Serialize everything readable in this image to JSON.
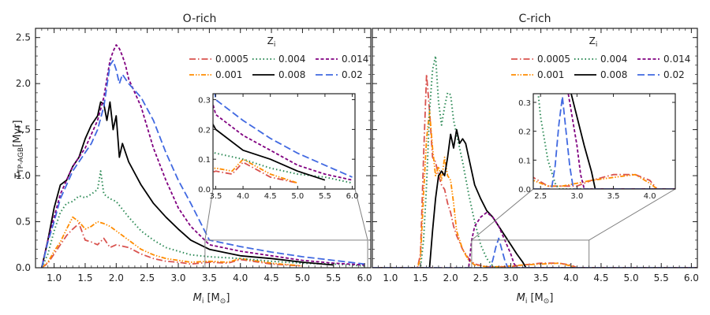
{
  "colors": {
    "0.0005": "#d9534f",
    "0.001": "#ff8c00",
    "0.004": "#2e8b57",
    "0.008": "#000000",
    "0.014": "#800080",
    "0.02": "#4169e1",
    "inset_box": "#808080"
  },
  "chart_data": [
    {
      "type": "line",
      "title": "O-rich",
      "xlabel": "M_i [M_sun]",
      "ylabel": "tau_TP-AGB [Myr]",
      "xlim": [
        0.7,
        6.1
      ],
      "ylim": [
        0,
        2.6
      ],
      "xticks": [
        1.0,
        1.5,
        2.0,
        2.5,
        3.0,
        3.5,
        4.0,
        4.5,
        5.0,
        5.5,
        6.0
      ],
      "yticks": [
        0.0,
        0.5,
        1.0,
        1.5,
        2.0,
        2.5
      ],
      "xtick_labels": [
        "1.0",
        "1.5",
        "2.0",
        "2.5",
        "3.0",
        "3.5",
        "4.0",
        "4.5",
        "5.0",
        "5.5",
        "6.0"
      ],
      "ytick_labels": [
        "0.0",
        "0.5",
        "1.0",
        "1.5",
        "2.0",
        "2.5"
      ],
      "legend": {
        "title": "Z",
        "title_subscript": "i",
        "entries": [
          "0.0005",
          "0.004",
          "0.014",
          "0.001",
          "0.008",
          "0.02"
        ]
      },
      "series": [
        {
          "name": "0.0005",
          "style": "dashdot",
          "x": [
            0.8,
            0.9,
            1.0,
            1.1,
            1.2,
            1.3,
            1.4,
            1.5,
            1.6,
            1.7,
            1.8,
            1.9,
            2.0,
            2.2,
            2.4,
            2.6,
            2.8,
            3.0,
            3.2,
            3.5,
            3.8,
            4.0,
            4.2,
            4.5,
            5.0
          ],
          "y": [
            0.0,
            0.05,
            0.15,
            0.25,
            0.35,
            0.42,
            0.48,
            0.3,
            0.28,
            0.25,
            0.32,
            0.22,
            0.25,
            0.22,
            0.15,
            0.1,
            0.07,
            0.06,
            0.04,
            0.06,
            0.05,
            0.09,
            0.07,
            0.04,
            0.02
          ]
        },
        {
          "name": "0.001",
          "style": "dashdotdot",
          "x": [
            0.8,
            0.9,
            1.0,
            1.1,
            1.2,
            1.3,
            1.4,
            1.5,
            1.6,
            1.7,
            1.8,
            1.9,
            2.0,
            2.2,
            2.4,
            2.6,
            2.8,
            3.0,
            3.2,
            3.5,
            3.8,
            4.0,
            4.2,
            4.5,
            5.0
          ],
          "y": [
            0.0,
            0.06,
            0.18,
            0.28,
            0.42,
            0.55,
            0.5,
            0.42,
            0.45,
            0.5,
            0.48,
            0.45,
            0.4,
            0.3,
            0.2,
            0.14,
            0.1,
            0.08,
            0.06,
            0.07,
            0.06,
            0.1,
            0.08,
            0.05,
            0.02
          ]
        },
        {
          "name": "0.004",
          "style": "dotted",
          "x": [
            0.8,
            0.9,
            1.0,
            1.1,
            1.2,
            1.3,
            1.4,
            1.5,
            1.6,
            1.7,
            1.75,
            1.8,
            1.9,
            2.0,
            2.2,
            2.4,
            2.6,
            2.8,
            3.0,
            3.2,
            3.5,
            4.0,
            4.5,
            5.0,
            5.5,
            6.0
          ],
          "y": [
            0.0,
            0.15,
            0.4,
            0.6,
            0.7,
            0.72,
            0.78,
            0.76,
            0.8,
            0.85,
            1.05,
            0.8,
            0.75,
            0.72,
            0.55,
            0.4,
            0.3,
            0.22,
            0.18,
            0.14,
            0.12,
            0.1,
            0.07,
            0.05,
            0.04,
            0.02
          ]
        },
        {
          "name": "0.008",
          "style": "solid",
          "x": [
            0.8,
            0.9,
            1.0,
            1.1,
            1.2,
            1.3,
            1.4,
            1.5,
            1.6,
            1.7,
            1.75,
            1.8,
            1.85,
            1.9,
            1.95,
            2.0,
            2.05,
            2.1,
            2.2,
            2.4,
            2.6,
            2.8,
            3.0,
            3.2,
            3.5,
            4.0,
            4.5,
            5.0,
            5.5
          ],
          "y": [
            0.0,
            0.3,
            0.65,
            0.9,
            0.95,
            1.1,
            1.2,
            1.4,
            1.55,
            1.65,
            1.8,
            1.78,
            1.6,
            1.8,
            1.5,
            1.65,
            1.2,
            1.35,
            1.15,
            0.9,
            0.7,
            0.55,
            0.42,
            0.3,
            0.2,
            0.13,
            0.1,
            0.06,
            0.03
          ]
        },
        {
          "name": "0.014",
          "style": "dashed",
          "x": [
            0.8,
            0.9,
            1.0,
            1.1,
            1.2,
            1.3,
            1.4,
            1.5,
            1.6,
            1.7,
            1.8,
            1.9,
            1.95,
            2.0,
            2.05,
            2.1,
            2.15,
            2.2,
            2.4,
            2.6,
            2.8,
            3.0,
            3.2,
            3.5,
            4.0,
            4.5,
            5.0,
            5.5,
            6.0
          ],
          "y": [
            0.0,
            0.3,
            0.55,
            0.8,
            0.95,
            1.1,
            1.2,
            1.3,
            1.45,
            1.6,
            1.85,
            2.25,
            2.35,
            2.42,
            2.38,
            2.3,
            2.2,
            2.05,
            1.75,
            1.3,
            0.95,
            0.65,
            0.45,
            0.25,
            0.18,
            0.13,
            0.08,
            0.05,
            0.03
          ]
        },
        {
          "name": "0.02",
          "style": "longdash",
          "x": [
            0.8,
            0.9,
            1.0,
            1.1,
            1.2,
            1.3,
            1.4,
            1.5,
            1.6,
            1.7,
            1.8,
            1.9,
            1.95,
            2.0,
            2.05,
            2.1,
            2.2,
            2.4,
            2.6,
            2.8,
            3.0,
            3.2,
            3.5,
            4.0,
            4.5,
            5.0,
            5.5,
            6.0
          ],
          "y": [
            0.0,
            0.28,
            0.5,
            0.75,
            0.9,
            1.05,
            1.15,
            1.25,
            1.35,
            1.5,
            1.75,
            2.2,
            2.25,
            2.15,
            2.0,
            2.1,
            2.0,
            1.85,
            1.6,
            1.25,
            0.95,
            0.7,
            0.3,
            0.23,
            0.17,
            0.12,
            0.08,
            0.04
          ]
        }
      ],
      "inset": {
        "xlim": [
          3.45,
          6.05
        ],
        "ylim": [
          0,
          0.32
        ],
        "xticks": [
          3.5,
          4.0,
          4.5,
          5.0,
          5.5,
          6.0
        ],
        "yticks": [
          0.0,
          0.1,
          0.2,
          0.3
        ],
        "xtick_labels": [
          "3.5",
          "4.0",
          "4.5",
          "5.0",
          "5.5",
          "6.0"
        ],
        "ytick_labels": [
          "0.0",
          "0.1",
          "0.2",
          "0.3"
        ]
      }
    },
    {
      "type": "line",
      "title": "C-rich",
      "xlabel": "M_i [M_sun]",
      "ylabel": "",
      "xlim": [
        0.7,
        6.1
      ],
      "ylim": [
        0,
        2.6
      ],
      "xticks": [
        1.0,
        1.5,
        2.0,
        2.5,
        3.0,
        3.5,
        4.0,
        4.5,
        5.0,
        5.5,
        6.0
      ],
      "yticks": [
        0.0,
        0.5,
        1.0,
        1.5,
        2.0,
        2.5
      ],
      "xtick_labels": [
        "1.0",
        "1.5",
        "2.0",
        "2.5",
        "3.0",
        "3.5",
        "4.0",
        "4.5",
        "5.0",
        "5.5",
        "6.0"
      ],
      "ytick_labels": [],
      "legend": {
        "title": "Z",
        "title_subscript": "i",
        "entries": [
          "0.0005",
          "0.004",
          "0.014",
          "0.001",
          "0.008",
          "0.02"
        ]
      },
      "series": [
        {
          "name": "0.0005",
          "style": "dashdot",
          "x": [
            0.7,
            1.45,
            1.5,
            1.55,
            1.6,
            1.65,
            1.7,
            1.75,
            1.8,
            1.85,
            1.9,
            1.95,
            2.0,
            2.05,
            2.1,
            2.2,
            2.3,
            2.4,
            2.6,
            2.8,
            3.0,
            3.2,
            3.5,
            3.8,
            4.0,
            4.1,
            6.1
          ],
          "y": [
            0.0,
            0.0,
            0.15,
            1.2,
            2.1,
            1.7,
            1.2,
            1.15,
            1.0,
            0.9,
            0.85,
            0.7,
            0.6,
            0.45,
            0.35,
            0.2,
            0.1,
            0.04,
            0.01,
            0.01,
            0.01,
            0.03,
            0.05,
            0.05,
            0.03,
            0.0,
            0.0
          ]
        },
        {
          "name": "0.001",
          "style": "dashdotdot",
          "x": [
            0.7,
            1.45,
            1.5,
            1.55,
            1.6,
            1.65,
            1.7,
            1.75,
            1.8,
            1.85,
            1.9,
            1.95,
            2.0,
            2.05,
            2.1,
            2.2,
            2.3,
            2.4,
            2.6,
            2.8,
            3.0,
            3.2,
            3.5,
            3.8,
            4.0,
            4.1,
            6.1
          ],
          "y": [
            0.0,
            0.0,
            0.1,
            0.8,
            1.4,
            1.7,
            1.3,
            1.0,
            1.1,
            0.95,
            1.2,
            1.0,
            0.95,
            0.7,
            0.4,
            0.2,
            0.08,
            0.03,
            0.01,
            0.01,
            0.02,
            0.03,
            0.04,
            0.05,
            0.02,
            0.0,
            0.0
          ]
        },
        {
          "name": "0.004",
          "style": "dotted",
          "x": [
            0.7,
            1.5,
            1.55,
            1.6,
            1.65,
            1.7,
            1.75,
            1.8,
            1.85,
            1.9,
            1.95,
            2.0,
            2.05,
            2.1,
            2.15,
            2.2,
            2.3,
            2.4,
            2.5,
            2.6,
            2.7,
            2.75,
            2.8,
            6.1
          ],
          "y": [
            0.0,
            0.0,
            0.3,
            0.9,
            1.7,
            2.15,
            2.3,
            1.8,
            1.55,
            1.75,
            1.9,
            1.88,
            1.6,
            1.45,
            1.3,
            1.15,
            0.8,
            0.5,
            0.25,
            0.1,
            0.02,
            0.0,
            0.0,
            0.0
          ]
        },
        {
          "name": "0.008",
          "style": "solid",
          "x": [
            0.7,
            1.65,
            1.7,
            1.75,
            1.8,
            1.85,
            1.9,
            1.95,
            2.0,
            2.05,
            2.1,
            2.15,
            2.2,
            2.25,
            2.3,
            2.4,
            2.5,
            2.6,
            2.7,
            2.8,
            2.9,
            3.0,
            3.1,
            3.2,
            3.25,
            6.1
          ],
          "y": [
            0.0,
            0.0,
            0.4,
            0.75,
            1.0,
            1.05,
            1.0,
            1.2,
            1.45,
            1.3,
            1.5,
            1.35,
            1.4,
            1.35,
            1.2,
            0.9,
            0.75,
            0.62,
            0.55,
            0.45,
            0.35,
            0.25,
            0.15,
            0.06,
            0.0,
            0.0
          ]
        },
        {
          "name": "0.014",
          "style": "dashed",
          "x": [
            0.7,
            2.3,
            2.35,
            2.4,
            2.5,
            2.6,
            2.7,
            2.8,
            2.9,
            3.0,
            3.05,
            3.1,
            3.15,
            6.1
          ],
          "y": [
            0.0,
            0.0,
            0.3,
            0.45,
            0.55,
            0.6,
            0.55,
            0.45,
            0.3,
            0.15,
            0.05,
            0.0,
            0.0,
            0.0
          ]
        },
        {
          "name": "0.02",
          "style": "longdash",
          "x": [
            0.7,
            2.65,
            2.7,
            2.75,
            2.8,
            2.85,
            2.9,
            2.95,
            3.0,
            6.1
          ],
          "y": [
            0.0,
            0.0,
            0.08,
            0.22,
            0.32,
            0.2,
            0.08,
            0.0,
            0.0,
            0.0
          ]
        }
      ],
      "inset": {
        "xlim": [
          2.4,
          4.35
        ],
        "ylim": [
          0,
          0.33
        ],
        "xticks": [
          2.5,
          3.0,
          3.5,
          4.0
        ],
        "yticks": [
          0.0,
          0.1,
          0.2,
          0.3
        ],
        "xtick_labels": [
          "2.5",
          "3.0",
          "3.5",
          "4.0"
        ],
        "ytick_labels": [
          "0.0",
          "0.1",
          "0.2",
          "0.3"
        ]
      }
    }
  ]
}
